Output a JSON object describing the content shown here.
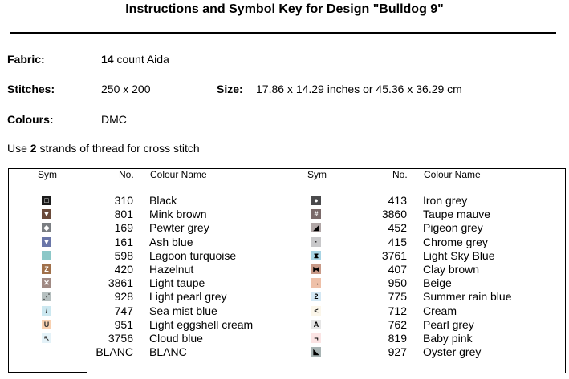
{
  "title": "Instructions and Symbol Key for Design \"Bulldog 9\"",
  "fabric": {
    "label": "Fabric:",
    "count": "14",
    "value": "count Aida"
  },
  "stitches": {
    "label": "Stitches:",
    "value": "250 x 200"
  },
  "size": {
    "label": "Size:",
    "value": "17.86 x 14.29 inches or 45.36 x 36.29 cm"
  },
  "colours": {
    "label": "Colours:",
    "value": "DMC"
  },
  "strands": {
    "prefix": "Use",
    "count": "2",
    "suffix": "strands of thread for cross stitch"
  },
  "table": {
    "headers": {
      "sym": "Sym",
      "no": "No.",
      "name": "Colour Name"
    },
    "left": [
      {
        "no": "310",
        "name": "Black",
        "fill": "#1a1a1a",
        "glyph": "□",
        "fg": "#ffffff"
      },
      {
        "no": "801",
        "name": "Mink brown",
        "fill": "#6a4a3a",
        "glyph": "▼",
        "fg": "#ffffff"
      },
      {
        "no": "169",
        "name": "Pewter grey",
        "fill": "#7a7e82",
        "glyph": "◆",
        "fg": "#ffffff"
      },
      {
        "no": "161",
        "name": "Ash blue",
        "fill": "#6a76a8",
        "glyph": "▼",
        "fg": "#ffffff"
      },
      {
        "no": "598",
        "name": "Lagoon turquoise",
        "fill": "#8cc8c8",
        "glyph": "—",
        "fg": "#333333"
      },
      {
        "no": "420",
        "name": "Hazelnut",
        "fill": "#a0704a",
        "glyph": "Z",
        "fg": "#ffffff"
      },
      {
        "no": "3861",
        "name": "Light taupe",
        "fill": "#a08a84",
        "glyph": "✕",
        "fg": "#ffffff"
      },
      {
        "no": "928",
        "name": "Light pearl grey",
        "fill": "#b6c0c0",
        "glyph": "⋰",
        "fg": "#333333"
      },
      {
        "no": "747",
        "name": "Sea mist blue",
        "fill": "#cce8f0",
        "glyph": "/",
        "fg": "#333333"
      },
      {
        "no": "951",
        "name": "Light eggshell cream",
        "fill": "#f8d0b0",
        "glyph": "U",
        "fg": "#333333"
      },
      {
        "no": "3756",
        "name": "Cloud blue",
        "fill": "#e4f2f8",
        "glyph": "↖",
        "fg": "#333333"
      },
      {
        "no": "BLANC",
        "name": "BLANC",
        "fill": "#ffffff",
        "glyph": "",
        "fg": "#333333"
      }
    ],
    "right": [
      {
        "no": "413",
        "name": "Iron grey",
        "fill": "#4a4a4c",
        "glyph": "●",
        "fg": "#ffffff"
      },
      {
        "no": "3860",
        "name": "Taupe mauve",
        "fill": "#7a6a6a",
        "glyph": "#",
        "fg": "#ffffff"
      },
      {
        "no": "452",
        "name": "Pigeon grey",
        "fill": "#b0a6a6",
        "glyph": "◢",
        "fg": "#000000"
      },
      {
        "no": "415",
        "name": "Chrome grey",
        "fill": "#c8c8ca",
        "glyph": "·",
        "fg": "#000000"
      },
      {
        "no": "3761",
        "name": "Light Sky Blue",
        "fill": "#a8d4e4",
        "glyph": "⧗",
        "fg": "#000000"
      },
      {
        "no": "407",
        "name": "Clay brown",
        "fill": "#c89a88",
        "glyph": "⧓",
        "fg": "#000000"
      },
      {
        "no": "950",
        "name": "Beige",
        "fill": "#eec0a8",
        "glyph": "→",
        "fg": "#000000"
      },
      {
        "no": "775",
        "name": "Summer rain blue",
        "fill": "#d4e8f4",
        "glyph": "2",
        "fg": "#000000"
      },
      {
        "no": "712",
        "name": "Cream",
        "fill": "#fbf6ea",
        "glyph": "<",
        "fg": "#000000"
      },
      {
        "no": "762",
        "name": "Pearl grey",
        "fill": "#e6e6e6",
        "glyph": "A",
        "fg": "#000000"
      },
      {
        "no": "819",
        "name": "Baby pink",
        "fill": "#fbe4e4",
        "glyph": "¬",
        "fg": "#000000"
      },
      {
        "no": "927",
        "name": "Oyster grey",
        "fill": "#a8b4b4",
        "glyph": "◣",
        "fg": "#000000"
      }
    ]
  }
}
